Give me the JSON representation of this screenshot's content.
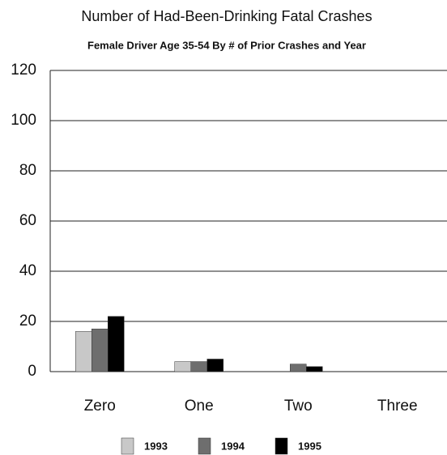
{
  "chart_data": {
    "type": "bar",
    "title": "Number of Had-Been-Drinking Fatal Crashes",
    "subtitle": "Female Driver Age 35-54 By # of Prior Crashes and Year",
    "categories": [
      "Zero",
      "One",
      "Two",
      "Three"
    ],
    "series": [
      {
        "name": "1993",
        "color": "#c8c8c8",
        "values": [
          16,
          4,
          0,
          0
        ]
      },
      {
        "name": "1994",
        "color": "#6e6e6e",
        "values": [
          17,
          4,
          3,
          0
        ]
      },
      {
        "name": "1995",
        "color": "#000000",
        "values": [
          22,
          5,
          2,
          0
        ]
      }
    ],
    "ylim": [
      0,
      120
    ],
    "yticks": [
      0,
      20,
      40,
      60,
      80,
      100,
      120
    ],
    "grid": true
  }
}
